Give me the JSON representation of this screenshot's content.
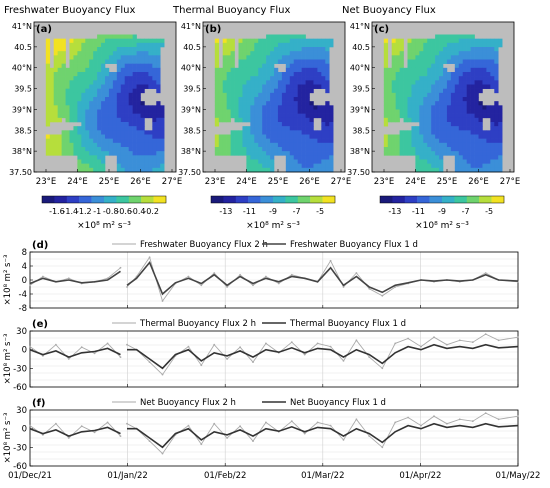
{
  "maps": {
    "lat_ticks": [
      "41°N",
      "40.5",
      "40°N",
      "39.5",
      "39°N",
      "38.5",
      "38°N",
      "37.50"
    ],
    "lon_ticks": [
      "23°E",
      "24°E",
      "25°E",
      "26°E",
      "27°E"
    ],
    "panels": [
      {
        "letter": "(a)",
        "title": "Freshwater Buoyancy Flux",
        "colorbar_labels": [
          "-1.6",
          "-1.4",
          "-1.2",
          "-1",
          "-0.8",
          "-0.6",
          "-0.4",
          "-0.2"
        ],
        "colorbar_unit": "×10⁸ m² s⁻³",
        "colors": [
          "#1a1a7a",
          "#2323a0",
          "#2e3fc4",
          "#3566d8",
          "#3b8fd8",
          "#35b0c8",
          "#3cc6a0",
          "#6fd36e",
          "#b6de3c",
          "#f2e222"
        ],
        "field_scale": 1.0
      },
      {
        "letter": "(b)",
        "title": "Thermal Buoyancy Flux",
        "colorbar_labels": [
          "-13",
          "-11",
          "-9",
          "-7",
          "-5"
        ],
        "colorbar_unit": "×10⁸ m² s⁻³",
        "colors": [
          "#1a1a7a",
          "#2323a0",
          "#2e3fc4",
          "#3566d8",
          "#3b8fd8",
          "#35b0c8",
          "#3cc6a0",
          "#6fd36e",
          "#b6de3c",
          "#f2e222"
        ],
        "field_scale": 0.9
      },
      {
        "letter": "(c)",
        "title": "Net Buoyancy Flux",
        "colorbar_labels": [
          "-13",
          "-11",
          "-9",
          "-7",
          "-5"
        ],
        "colorbar_unit": "×10⁸ m² s⁻³",
        "colors": [
          "#1a1a7a",
          "#2323a0",
          "#2e3fc4",
          "#3566d8",
          "#3b8fd8",
          "#35b0c8",
          "#3cc6a0",
          "#6fd36e",
          "#b6de3c",
          "#f2e222"
        ],
        "field_scale": 0.9
      }
    ]
  },
  "chart_data": [
    {
      "type": "line",
      "panel": "(d)",
      "ylabel": "×10⁸ m² s⁻³",
      "ylim": [
        -8,
        8
      ],
      "yticks": [
        -8,
        -4,
        0,
        4,
        8
      ],
      "x_ticks": [
        "01/Dec/21",
        "01/Jan/22",
        "01/Feb/22",
        "01/Mar/22",
        "01/Apr/22",
        "01/May/22"
      ],
      "x_range_days": [
        0,
        151
      ],
      "grid": true,
      "legend_position": "top",
      "series": [
        {
          "name": "Freshwater Buoyancy Flux 2 h",
          "color": "#aaaaaa",
          "x_days": [
            0,
            4,
            8,
            12,
            16,
            20,
            24,
            28,
            30,
            33,
            37,
            41,
            45,
            49,
            53,
            57,
            61,
            65,
            69,
            73,
            77,
            81,
            85,
            89,
            93,
            97,
            101,
            105,
            109,
            113,
            117,
            121,
            125,
            129,
            133,
            137,
            141,
            145,
            151
          ],
          "values": [
            -1.5,
            1.0,
            -0.5,
            0.5,
            -1.0,
            -0.5,
            0.5,
            3.5,
            -2.0,
            1.0,
            6.5,
            -6.0,
            -1.0,
            1.0,
            -1.5,
            2.0,
            -2.0,
            1.5,
            -1.5,
            1.0,
            -1.0,
            1.5,
            0.5,
            -0.5,
            5.5,
            -2.0,
            2.0,
            -2.5,
            -4.5,
            -2.0,
            -1.0,
            0.0,
            -0.5,
            0.0,
            -0.5,
            0.0,
            2.0,
            0.0,
            -0.5
          ]
        },
        {
          "name": "Freshwater Buoyancy Flux 1 d",
          "color": "#444444",
          "x_days": [
            0,
            4,
            8,
            12,
            16,
            20,
            24,
            28,
            30,
            33,
            37,
            41,
            45,
            49,
            53,
            57,
            61,
            65,
            69,
            73,
            77,
            81,
            85,
            89,
            93,
            97,
            101,
            105,
            109,
            113,
            117,
            121,
            125,
            129,
            133,
            137,
            141,
            145,
            151
          ],
          "values": [
            -1.0,
            0.5,
            -0.5,
            0.0,
            -0.8,
            -0.5,
            0.0,
            2.5,
            -1.5,
            0.5,
            5.0,
            -4.0,
            -0.8,
            0.5,
            -1.0,
            1.5,
            -1.5,
            1.0,
            -1.0,
            0.5,
            -0.5,
            1.0,
            0.5,
            -0.5,
            3.5,
            -1.5,
            1.0,
            -2.0,
            -3.5,
            -1.5,
            -0.8,
            0.0,
            -0.3,
            0.0,
            -0.3,
            0.0,
            1.5,
            0.0,
            -0.3
          ]
        }
      ]
    },
    {
      "type": "line",
      "panel": "(e)",
      "ylabel": "×10⁸ m² s⁻³",
      "ylim": [
        -60,
        30
      ],
      "yticks": [
        -60,
        -30,
        0,
        30
      ],
      "x_ticks": [
        "01/Dec/21",
        "01/Jan/22",
        "01/Feb/22",
        "01/Mar/22",
        "01/Apr/22",
        "01/May/22"
      ],
      "x_range_days": [
        0,
        151
      ],
      "grid": true,
      "legend_position": "top",
      "series": [
        {
          "name": "Thermal Buoyancy Flux 2 h",
          "color": "#aaaaaa",
          "x_days": [
            0,
            4,
            8,
            12,
            16,
            20,
            24,
            28,
            30,
            33,
            37,
            41,
            45,
            49,
            53,
            57,
            61,
            65,
            69,
            73,
            77,
            81,
            85,
            89,
            93,
            97,
            101,
            105,
            109,
            113,
            117,
            121,
            125,
            129,
            133,
            137,
            141,
            145,
            151
          ],
          "values": [
            5,
            -10,
            8,
            -15,
            4,
            -6,
            10,
            -12,
            8,
            0,
            -20,
            -40,
            -10,
            5,
            -25,
            8,
            -15,
            4,
            -20,
            10,
            -5,
            12,
            -8,
            10,
            5,
            -18,
            15,
            -12,
            -30,
            10,
            18,
            5,
            20,
            8,
            15,
            12,
            25,
            15,
            20
          ]
        },
        {
          "name": "Thermal Buoyancy Flux 1 d",
          "color": "#333333",
          "x_days": [
            0,
            4,
            8,
            12,
            16,
            20,
            24,
            28,
            30,
            33,
            37,
            41,
            45,
            49,
            53,
            57,
            61,
            65,
            69,
            73,
            77,
            81,
            85,
            89,
            93,
            97,
            101,
            105,
            109,
            113,
            117,
            121,
            125,
            129,
            133,
            137,
            141,
            145,
            151
          ],
          "values": [
            0,
            -8,
            -2,
            -12,
            -5,
            -3,
            2,
            -8,
            0,
            0,
            -15,
            -30,
            -8,
            0,
            -18,
            -5,
            -10,
            -2,
            -12,
            0,
            -4,
            3,
            -5,
            2,
            0,
            -12,
            0,
            -8,
            -22,
            -5,
            5,
            0,
            8,
            2,
            5,
            2,
            8,
            3,
            5
          ]
        }
      ]
    },
    {
      "type": "line",
      "panel": "(f)",
      "ylabel": "×10⁸ m² s⁻³",
      "ylim": [
        -60,
        30
      ],
      "yticks": [
        -60,
        -30,
        0,
        30
      ],
      "x_ticks": [
        "01/Dec/21",
        "01/Jan/22",
        "01/Feb/22",
        "01/Mar/22",
        "01/Apr/22",
        "01/May/22"
      ],
      "x_range_days": [
        0,
        151
      ],
      "grid": true,
      "legend_position": "top",
      "series": [
        {
          "name": "Net Buoyancy Flux 2 h",
          "color": "#aaaaaa",
          "x_days": [
            0,
            4,
            8,
            12,
            16,
            20,
            24,
            28,
            30,
            33,
            37,
            41,
            45,
            49,
            53,
            57,
            61,
            65,
            69,
            73,
            77,
            81,
            85,
            89,
            93,
            97,
            101,
            105,
            109,
            113,
            117,
            121,
            125,
            129,
            133,
            137,
            141,
            145,
            151
          ],
          "values": [
            5,
            -10,
            8,
            -15,
            4,
            -6,
            10,
            -12,
            8,
            0,
            -20,
            -40,
            -10,
            5,
            -25,
            8,
            -15,
            4,
            -20,
            10,
            -5,
            12,
            -8,
            10,
            5,
            -18,
            15,
            -12,
            -30,
            10,
            18,
            5,
            20,
            8,
            15,
            12,
            25,
            15,
            20
          ]
        },
        {
          "name": "Net Buoyancy Flux 1 d",
          "color": "#333333",
          "x_days": [
            0,
            4,
            8,
            12,
            16,
            20,
            24,
            28,
            30,
            33,
            37,
            41,
            45,
            49,
            53,
            57,
            61,
            65,
            69,
            73,
            77,
            81,
            85,
            89,
            93,
            97,
            101,
            105,
            109,
            113,
            117,
            121,
            125,
            129,
            133,
            137,
            141,
            145,
            151
          ],
          "values": [
            0,
            -8,
            -2,
            -12,
            -5,
            -3,
            2,
            -8,
            0,
            0,
            -15,
            -30,
            -8,
            0,
            -18,
            -5,
            -10,
            -2,
            -12,
            0,
            -4,
            3,
            -5,
            2,
            0,
            -12,
            0,
            -8,
            -22,
            -5,
            5,
            0,
            8,
            2,
            5,
            2,
            8,
            3,
            5
          ]
        }
      ]
    }
  ]
}
